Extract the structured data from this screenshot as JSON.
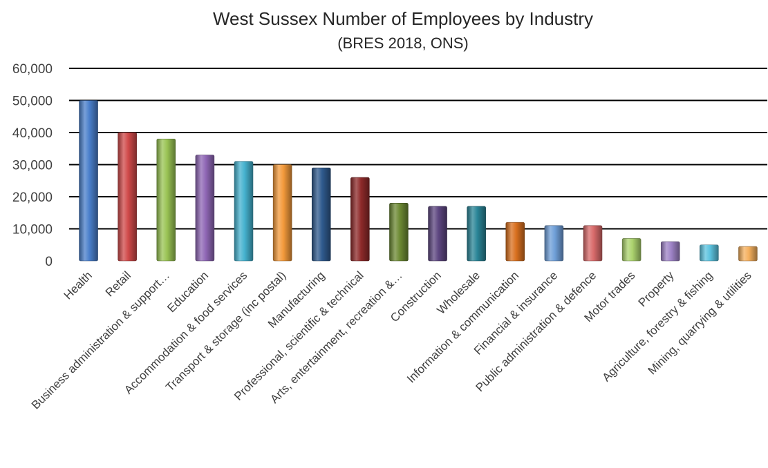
{
  "chart_data": {
    "type": "bar",
    "title": "West Sussex Number of Employees by Industry",
    "subtitle": "(BRES 2018, ONS)",
    "xlabel": "",
    "ylabel": "",
    "ylim": [
      0,
      60000
    ],
    "yticks": [
      0,
      10000,
      20000,
      30000,
      40000,
      50000,
      60000
    ],
    "ytick_labels": [
      "0",
      "10,000",
      "20,000",
      "30,000",
      "40,000",
      "50,000",
      "60,000"
    ],
    "grid": true,
    "legend": "none",
    "categories": [
      "Health",
      "Retail",
      "Business administration & support…",
      "Education",
      "Accommodation & food services",
      "Transport & storage (inc postal)",
      "Manufacturing",
      "Professional, scientific & technical",
      "Arts, entertainment, recreation &…",
      "Construction",
      "Wholesale",
      "Information & communication",
      "Financial & insurance",
      "Public administration & defence",
      "Motor trades",
      "Property",
      "Agriculture, forestry & fishing",
      "Mining, quarrying & utilities"
    ],
    "values": [
      50000,
      40000,
      38000,
      33000,
      31000,
      30000,
      29000,
      26000,
      18000,
      17000,
      17000,
      12000,
      11000,
      11000,
      7000,
      6000,
      5000,
      4500
    ],
    "colors": [
      "#4a7fcb",
      "#d04a4a",
      "#9ac454",
      "#8f67b5",
      "#45b2cf",
      "#f39a3b",
      "#2f5a8e",
      "#8e2a2a",
      "#6d8a34",
      "#5d4680",
      "#2a8597",
      "#d9701f",
      "#6f9fd8",
      "#d86a6a",
      "#acd36e",
      "#9e83c7",
      "#5cc3df",
      "#f5b05e"
    ]
  }
}
